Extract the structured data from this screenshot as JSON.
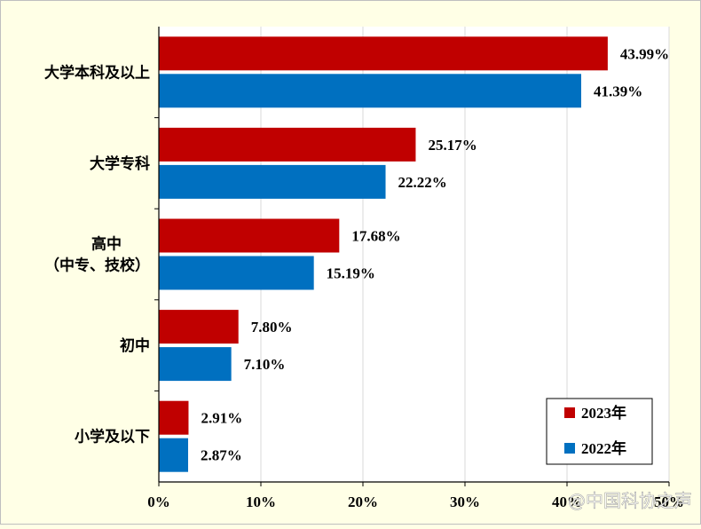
{
  "chart_data": {
    "type": "bar",
    "orientation": "horizontal",
    "categories": [
      "大学本科及以上",
      "大学专科",
      "高中\n（中专、技校）",
      "初中",
      "小学及以下"
    ],
    "series": [
      {
        "name": "2023年",
        "color": "#c00000",
        "values": [
          43.99,
          25.17,
          17.68,
          7.8,
          2.91
        ],
        "labels": [
          "43.99%",
          "25.17%",
          "17.68%",
          "7.80%",
          "2.91%"
        ]
      },
      {
        "name": "2022年",
        "color": "#0070c0",
        "values": [
          41.39,
          22.22,
          15.19,
          7.1,
          2.87
        ],
        "labels": [
          "41.39%",
          "22.22%",
          "15.19%",
          "7.10%",
          "2.87%"
        ]
      }
    ],
    "xlim": [
      0,
      50
    ],
    "xticks": [
      "0%",
      "10%",
      "20%",
      "30%",
      "40%",
      "50%"
    ],
    "grid": true,
    "legend_position": "bottom-right"
  },
  "watermark": "@中国科协之声"
}
